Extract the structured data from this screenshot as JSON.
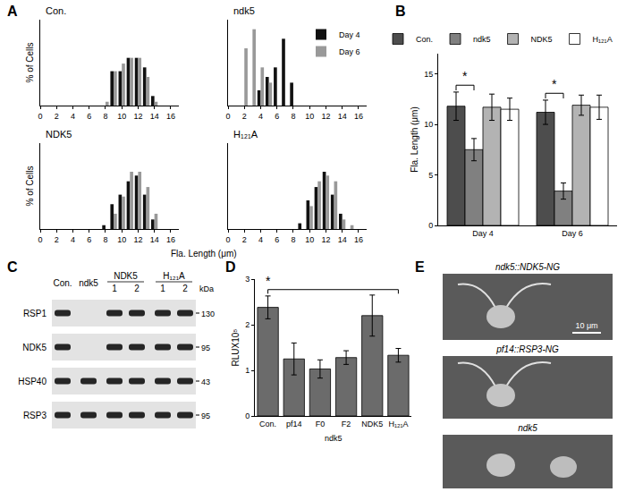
{
  "panels": [
    "A",
    "B",
    "C",
    "D",
    "E"
  ],
  "chart_data": [
    {
      "type": "bar",
      "title": "Con.",
      "ylabel": "% of Cells",
      "tick_labels": "x",
      "x": [
        8,
        9,
        10,
        11,
        12,
        13,
        14
      ],
      "series": [
        {
          "name": "Day 4",
          "color": "#111111",
          "values": [
            0,
            18,
            18,
            25,
            25,
            20,
            5
          ]
        },
        {
          "name": "Day 6",
          "color": "#999999",
          "values": [
            2,
            18,
            22,
            25,
            25,
            15,
            2
          ]
        }
      ],
      "xlim": [
        0,
        17
      ],
      "xticks": [
        0,
        2,
        4,
        6,
        8,
        10,
        12,
        14,
        16
      ],
      "ylim": [
        0,
        45
      ]
    },
    {
      "type": "bar",
      "title": "ndk5",
      "tick_labels": "x",
      "legend": "upper right",
      "x": [
        1,
        2,
        3,
        4,
        5,
        6,
        7,
        8
      ],
      "series": [
        {
          "name": "Day 4",
          "color": "#111111",
          "values": [
            0,
            0,
            0,
            8,
            15,
            20,
            35,
            12
          ]
        },
        {
          "name": "Day 6",
          "color": "#999999",
          "values": [
            0,
            30,
            40,
            20,
            12,
            0,
            0,
            0
          ]
        }
      ],
      "xlim": [
        0,
        17
      ],
      "xticks": [
        0,
        2,
        4,
        6,
        8,
        10,
        12,
        14,
        16
      ],
      "ylim": [
        0,
        45
      ]
    },
    {
      "type": "bar",
      "title": "NDK5",
      "ylabel": "% of Cells",
      "tick_labels": "x",
      "x": [
        8,
        9,
        10,
        11,
        12,
        13,
        14
      ],
      "series": [
        {
          "name": "Day 4",
          "color": "#111111",
          "values": [
            2,
            13,
            18,
            25,
            28,
            18,
            5
          ]
        },
        {
          "name": "Day 6",
          "color": "#999999",
          "values": [
            0,
            8,
            17,
            30,
            30,
            22,
            8
          ]
        }
      ],
      "xlim": [
        0,
        17
      ],
      "xticks": [
        0,
        2,
        4,
        6,
        8,
        10,
        12,
        14,
        16
      ],
      "ylim": [
        0,
        45
      ]
    },
    {
      "type": "bar",
      "title": "H₁₂₁A",
      "xlabel": "Fla. Length (μm)",
      "tick_labels": "x",
      "x": [
        9,
        10,
        11,
        12,
        13,
        14,
        15
      ],
      "series": [
        {
          "name": "Day 4",
          "color": "#111111",
          "values": [
            3,
            15,
            22,
            30,
            18,
            8,
            0
          ]
        },
        {
          "name": "Day 6",
          "color": "#999999",
          "values": [
            0,
            12,
            25,
            28,
            25,
            5,
            2
          ]
        }
      ],
      "xlim": [
        0,
        17
      ],
      "xticks": [
        0,
        2,
        4,
        6,
        8,
        10,
        12,
        14,
        16
      ],
      "ylim": [
        0,
        45
      ]
    },
    {
      "type": "bar",
      "ylabel": "Fla. Length (μm)",
      "legend": "top",
      "categories": [
        "Day 4",
        "Day 6"
      ],
      "series": [
        {
          "name": "Con.",
          "color": "#4d4d4d",
          "values": [
            11.8,
            11.2
          ],
          "errors": [
            1.4,
            1.2
          ]
        },
        {
          "name": "ndk5",
          "color": "#808080",
          "values": [
            7.5,
            3.4
          ],
          "errors": [
            1.1,
            0.8
          ]
        },
        {
          "name": "NDK5",
          "color": "#b3b3b3",
          "values": [
            11.7,
            11.9
          ],
          "errors": [
            1.3,
            1.0
          ]
        },
        {
          "name": "H₁₂₁A",
          "color": "#ffffff",
          "values": [
            11.5,
            11.7
          ],
          "errors": [
            1.1,
            1.2
          ]
        }
      ],
      "ylim": [
        0,
        17
      ],
      "yticks": [
        0,
        5,
        10,
        15
      ],
      "annotations": [
        {
          "text": "*",
          "category": "Day 4",
          "from": "Con.",
          "to": "ndk5"
        },
        {
          "text": "*",
          "category": "Day 6",
          "from": "Con.",
          "to": "ndk5"
        }
      ]
    },
    {
      "type": "bar",
      "ylabel": "RLUX10⁵",
      "color": "#6b6b6b",
      "categories": [
        "Con.",
        "pf14",
        "F0",
        "F2",
        "NDK5",
        "H₁₂₁A"
      ],
      "values": [
        2.38,
        1.25,
        1.03,
        1.28,
        2.2,
        1.33
      ],
      "errors": [
        0.25,
        0.35,
        0.2,
        0.15,
        0.45,
        0.15
      ],
      "ylim": [
        0,
        3
      ],
      "yticks": [
        0,
        1,
        2,
        3
      ],
      "groups": [
        {
          "label": "ndk5",
          "categories": [
            "F0",
            "F2"
          ]
        }
      ],
      "annotations": [
        {
          "text": "*",
          "from": "Con.",
          "to": "H₁₂₁A"
        }
      ]
    }
  ],
  "blot": {
    "unit": "kDa",
    "lanes": [
      {
        "label": "Con."
      },
      {
        "label": "ndk5"
      },
      {
        "group": "NDK5",
        "label": "1"
      },
      {
        "group": "NDK5",
        "label": "2"
      },
      {
        "group": "H₁₂₁A",
        "label": "1"
      },
      {
        "group": "H₁₂₁A",
        "label": "2"
      }
    ],
    "rows": [
      {
        "label": "RSP1",
        "marker": 130,
        "bands": [
          true,
          false,
          true,
          true,
          true,
          true
        ]
      },
      {
        "label": "NDK5",
        "marker": 95,
        "bands": [
          true,
          false,
          true,
          true,
          true,
          true
        ]
      },
      {
        "label": "HSP40",
        "marker": 43,
        "bands": [
          true,
          true,
          true,
          true,
          true,
          true
        ]
      },
      {
        "label": "RSP3",
        "marker": 95,
        "bands": [
          true,
          true,
          true,
          true,
          true,
          true
        ]
      }
    ]
  },
  "micrographs": {
    "images": [
      {
        "label": "ndk5::NDK5-NG",
        "flagella": true,
        "scale_bar": "10 μm"
      },
      {
        "label": "pf14::RSP3-NG",
        "flagella": true
      },
      {
        "label": "ndk5",
        "flagella": false
      }
    ]
  }
}
